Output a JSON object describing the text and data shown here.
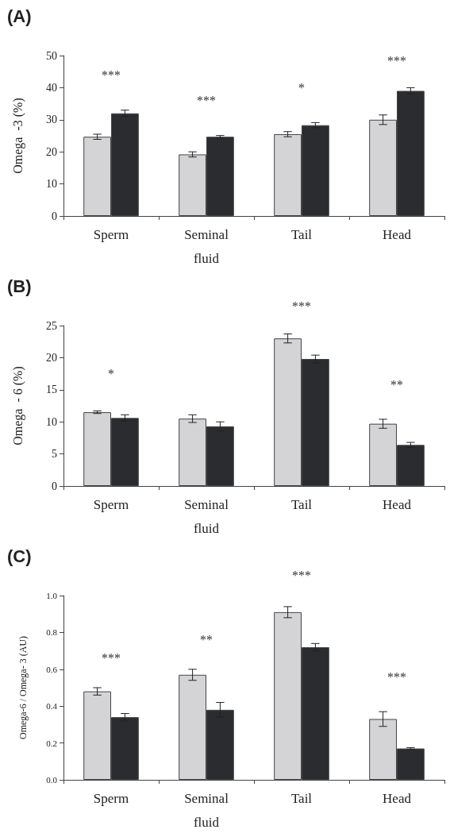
{
  "chart_data": [
    {
      "type": "bar",
      "title": "(A)",
      "ylabel": "Omega  -3 (%)",
      "categories": [
        "Sperm",
        "Seminal\nfluid",
        "Tail",
        "Head"
      ],
      "ylim": [
        0,
        50
      ],
      "yticks": [
        0,
        10,
        20,
        30,
        40,
        50
      ],
      "series": [
        {
          "color": "#d4d4d6",
          "values": [
            24.7,
            19.2,
            25.5,
            30
          ],
          "errors": [
            0.8,
            0.8,
            0.8,
            1.5
          ]
        },
        {
          "color": "#2a2c30",
          "values": [
            32,
            24.7,
            28.3,
            39
          ],
          "errors": [
            1,
            0.4,
            0.8,
            1
          ]
        }
      ],
      "annotations": [
        "***",
        "***",
        "*",
        "***"
      ]
    },
    {
      "type": "bar",
      "title": "(B)",
      "ylabel": "Omega  - 6 (%)",
      "categories": [
        "Sperm",
        "Seminal\nfluid",
        "Tail",
        "Head"
      ],
      "ylim": [
        0,
        25
      ],
      "yticks": [
        0,
        5,
        10,
        15,
        20,
        25
      ],
      "series": [
        {
          "color": "#d4d4d6",
          "values": [
            11.5,
            10.5,
            23,
            9.7
          ],
          "errors": [
            0.2,
            0.6,
            0.7,
            0.7
          ]
        },
        {
          "color": "#2a2c30",
          "values": [
            10.6,
            9.3,
            19.8,
            6.4
          ],
          "errors": [
            0.5,
            0.7,
            0.6,
            0.4
          ]
        }
      ],
      "annotations": [
        "*",
        "***",
        "**"
      ]
    },
    {
      "type": "bar",
      "title": "(C)",
      "ylabel": "Omega-6 / Omega- 3 (AU)",
      "categories": [
        "Sperm",
        "Seminal\nfluid",
        "Tail",
        "Head"
      ],
      "ylim": [
        0,
        1
      ],
      "yticks": [
        {
          "value": 0,
          "label": "0.0"
        },
        {
          "value": 0.2,
          "label": "0.2"
        },
        {
          "value": 0.4,
          "label": "0.4"
        },
        {
          "value": 0.6,
          "label": "0.6"
        },
        {
          "value": 0.8,
          "label": "0.8"
        },
        {
          "value": 1,
          "label": "1.0"
        }
      ],
      "series": [
        {
          "color": "#d4d4d6",
          "values": [
            0.48,
            0.57,
            0.91,
            0.33
          ],
          "errors": [
            0.02,
            0.03,
            0.03,
            0.04
          ]
        },
        {
          "color": "#2a2c30",
          "values": [
            0.34,
            0.38,
            0.72,
            0.17
          ],
          "errors": [
            0.02,
            0.04,
            0.02,
            0.005
          ]
        }
      ],
      "annotations": [
        "***",
        "**",
        "***",
        "***"
      ]
    }
  ]
}
